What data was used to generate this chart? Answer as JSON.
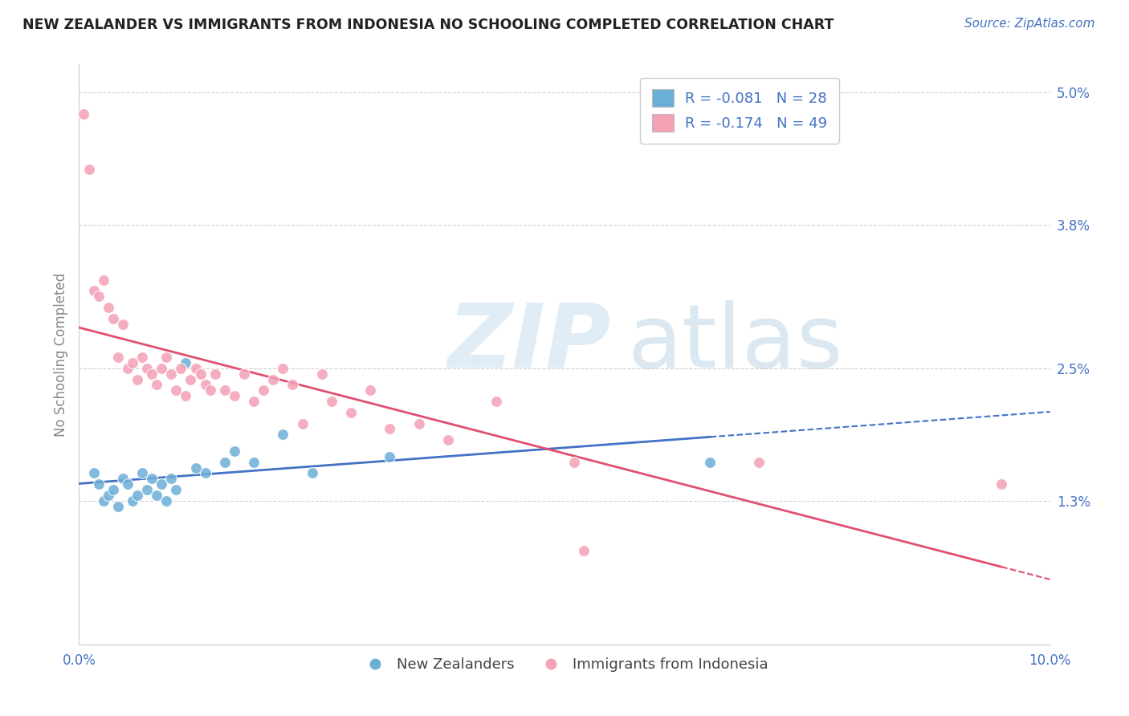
{
  "title": "NEW ZEALANDER VS IMMIGRANTS FROM INDONESIA NO SCHOOLING COMPLETED CORRELATION CHART",
  "source": "Source: ZipAtlas.com",
  "ylabel": "No Schooling Completed",
  "xlim": [
    0.0,
    10.0
  ],
  "ylim": [
    0.0,
    5.25
  ],
  "ytick_labels_right": [
    "1.3%",
    "2.5%",
    "3.8%",
    "5.0%"
  ],
  "ytick_vals_right": [
    1.3,
    2.5,
    3.8,
    5.0
  ],
  "legend_r1": "-0.081",
  "legend_n1": "28",
  "legend_r2": "-0.174",
  "legend_n2": "49",
  "color_blue": "#6baed6",
  "color_blue_line": "#4472c4",
  "color_pink": "#f4a0b5",
  "color_pink_line": "#e05070",
  "color_text": "#4472c4",
  "background_color": "#ffffff",
  "grid_color": "#d0d0d0",
  "nz_x": [
    0.15,
    0.2,
    0.25,
    0.3,
    0.35,
    0.4,
    0.45,
    0.5,
    0.55,
    0.6,
    0.65,
    0.7,
    0.75,
    0.8,
    0.85,
    0.9,
    0.95,
    1.0,
    1.1,
    1.2,
    1.3,
    1.5,
    1.6,
    1.8,
    2.1,
    2.4,
    3.2,
    6.5
  ],
  "nz_y": [
    1.55,
    1.45,
    1.3,
    1.35,
    1.4,
    1.25,
    1.5,
    1.45,
    1.3,
    1.35,
    1.55,
    1.4,
    1.5,
    1.35,
    1.45,
    1.3,
    1.5,
    1.4,
    2.55,
    1.6,
    1.55,
    1.65,
    1.75,
    1.65,
    1.9,
    1.55,
    1.7,
    1.65
  ],
  "indo_x": [
    0.05,
    0.1,
    0.15,
    0.2,
    0.25,
    0.3,
    0.35,
    0.4,
    0.45,
    0.5,
    0.55,
    0.6,
    0.65,
    0.7,
    0.75,
    0.8,
    0.85,
    0.9,
    0.95,
    1.0,
    1.05,
    1.1,
    1.15,
    1.2,
    1.25,
    1.3,
    1.35,
    1.4,
    1.5,
    1.6,
    1.7,
    1.8,
    1.9,
    2.0,
    2.1,
    2.2,
    2.3,
    2.5,
    2.6,
    2.8,
    3.0,
    3.2,
    3.5,
    3.8,
    4.3,
    5.1,
    5.2,
    7.0,
    9.5
  ],
  "indo_y": [
    4.8,
    4.3,
    3.2,
    3.15,
    3.3,
    3.05,
    2.95,
    2.6,
    2.9,
    2.5,
    2.55,
    2.4,
    2.6,
    2.5,
    2.45,
    2.35,
    2.5,
    2.6,
    2.45,
    2.3,
    2.5,
    2.25,
    2.4,
    2.5,
    2.45,
    2.35,
    2.3,
    2.45,
    2.3,
    2.25,
    2.45,
    2.2,
    2.3,
    2.4,
    2.5,
    2.35,
    2.0,
    2.45,
    2.2,
    2.1,
    2.3,
    1.95,
    2.0,
    1.85,
    2.2,
    1.65,
    0.85,
    1.65,
    1.45
  ]
}
